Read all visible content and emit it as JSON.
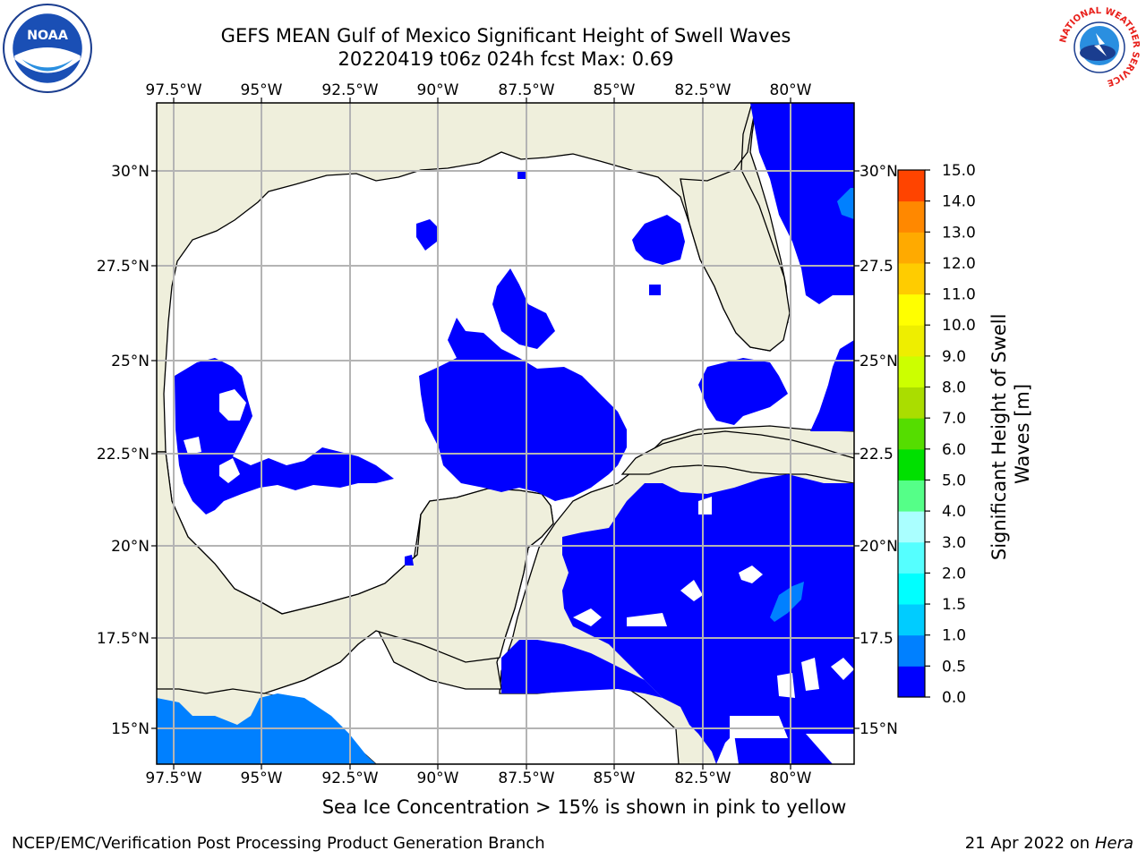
{
  "header": {
    "title_line1": "GEFS MEAN Gulf of Mexico Significant Height of Swell Waves",
    "title_line2": "20220419 t06z 024h fcst   Max: 0.69"
  },
  "logos": {
    "left": "NOAA",
    "right_ring": "NATIONAL WEATHER SERVICE"
  },
  "map": {
    "lon_labels": [
      "97.5°W",
      "95°W",
      "92.5°W",
      "90°W",
      "87.5°W",
      "85°W",
      "82.5°W",
      "80°W"
    ],
    "lat_labels_left": [
      "30°N",
      "27.5°N",
      "25°N",
      "22.5°N",
      "20°N",
      "17.5°N",
      "15°N"
    ],
    "lat_labels_right": [
      "30°N",
      "27.5",
      "25°N",
      "22.5",
      "20°N",
      "17.5",
      "15°N"
    ],
    "colors": {
      "land": "#efefdc",
      "ocean": "#ffffff",
      "grid": "#b4b4b4",
      "swell_low": "#0000ff",
      "swell_mid": "#0080ff"
    }
  },
  "colorbar": {
    "label": "Significant Height of Swell Waves [m]",
    "ticks": [
      "0.0",
      "0.5",
      "1.0",
      "1.5",
      "2.0",
      "3.0",
      "4.0",
      "5.0",
      "6.0",
      "7.0",
      "8.0",
      "9.0",
      "10.0",
      "11.0",
      "12.0",
      "13.0",
      "14.0",
      "15.0"
    ],
    "colors": [
      "#0000ff",
      "#0080ff",
      "#00ccff",
      "#00ffff",
      "#55ffff",
      "#aaffff",
      "#55ff88",
      "#00e000",
      "#55dd00",
      "#aadd00",
      "#ccff00",
      "#eeee00",
      "#ffff00",
      "#ffcc00",
      "#ffaa00",
      "#ff8800",
      "#ff4400",
      "#ff0000"
    ]
  },
  "note": "Sea Ice Concentration > 15% is shown in pink to yellow",
  "footer": {
    "left": "NCEP/EMC/Verification Post Processing Product Generation Branch",
    "date": "21 Apr 2022 on ",
    "machine": "Hera"
  }
}
